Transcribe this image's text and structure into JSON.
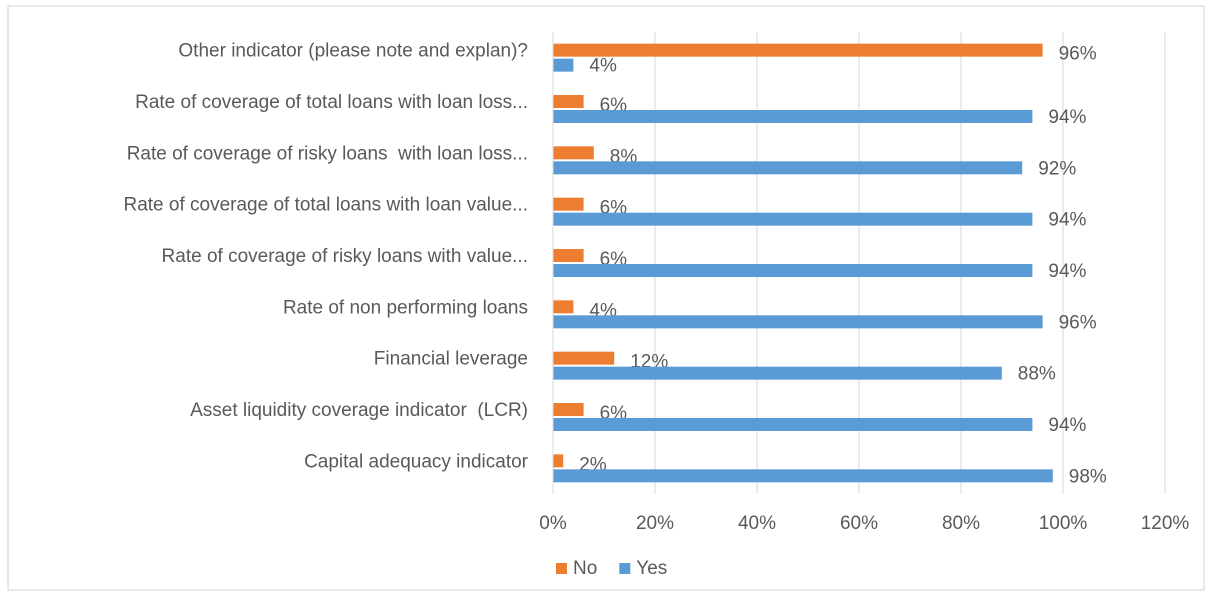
{
  "chart_data": {
    "type": "bar",
    "orientation": "horizontal",
    "categories": [
      "Other indicator (please note and explan)?",
      "Rate of coverage of total loans with loan loss...",
      "Rate of coverage of risky loans  with loan loss...",
      "Rate of coverage of total loans with loan value...",
      "Rate of coverage of risky loans with value...",
      "Rate of non performing loans",
      "Financial leverage",
      "Asset liquidity coverage indicator  (LCR)",
      "Capital adequacy indicator"
    ],
    "series": [
      {
        "name": "No",
        "color": "#ed7d31",
        "values": [
          96,
          6,
          8,
          6,
          6,
          4,
          12,
          6,
          2
        ],
        "value_labels": [
          "96%",
          "6%",
          "8%",
          "6%",
          "6%",
          "4%",
          "12%",
          "6%",
          "2%"
        ]
      },
      {
        "name": "Yes",
        "color": "#5b9bd5",
        "values": [
          4,
          94,
          92,
          94,
          94,
          96,
          88,
          94,
          98
        ],
        "value_labels": [
          "4%",
          "94%",
          "92%",
          "94%",
          "94%",
          "96%",
          "88%",
          "94%",
          "98%"
        ]
      }
    ],
    "xlim": [
      0,
      120
    ],
    "xticks": [
      {
        "value": 0,
        "label": "0%"
      },
      {
        "value": 20,
        "label": "20%"
      },
      {
        "value": 40,
        "label": "40%"
      },
      {
        "value": 60,
        "label": "60%"
      },
      {
        "value": 80,
        "label": "80%"
      },
      {
        "value": 100,
        "label": "100%"
      },
      {
        "value": 120,
        "label": "120%"
      }
    ],
    "grid": true,
    "legend": "bottom"
  }
}
